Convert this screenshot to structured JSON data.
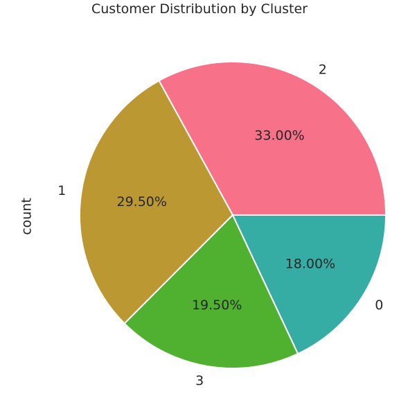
{
  "chart_data": {
    "type": "pie",
    "title": "Customer Distribution by Cluster",
    "ylabel": "count",
    "xlabel": "",
    "start_angle_deg": 0,
    "direction": "counterclockwise",
    "slices": [
      {
        "label": "2",
        "value": 33.0,
        "pct_label": "33.00%",
        "color": "#f77189"
      },
      {
        "label": "1",
        "value": 29.5,
        "pct_label": "29.50%",
        "color": "#bb9832"
      },
      {
        "label": "3",
        "value": 19.5,
        "pct_label": "19.50%",
        "color": "#50b131"
      },
      {
        "label": "0",
        "value": 18.0,
        "pct_label": "18.00%",
        "color": "#36ada4"
      }
    ]
  }
}
